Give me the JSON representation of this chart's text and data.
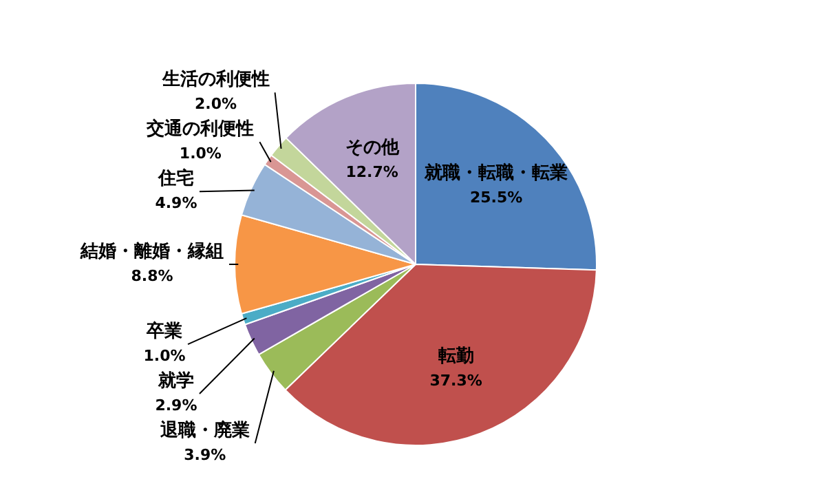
{
  "chart_data": {
    "type": "pie",
    "categories": [
      "就職・転職・転業",
      "転勤",
      "退職・廃業",
      "就学",
      "卒業",
      "結婚・離婚・縁組",
      "住宅",
      "交通の利便性",
      "生活の利便性",
      "その他"
    ],
    "values": [
      25.5,
      37.3,
      3.9,
      2.9,
      1.0,
      8.8,
      4.9,
      1.0,
      2.0,
      12.7
    ],
    "value_labels": [
      "25.5%",
      "37.3%",
      "3.9%",
      "2.9%",
      "1.0%",
      "8.8%",
      "4.9%",
      "1.0%",
      "2.0%",
      "12.7%"
    ],
    "colors": [
      "#4f81bd",
      "#c0504d",
      "#9bbb59",
      "#8064a2",
      "#4bacc6",
      "#f79646",
      "#95b3d7",
      "#d99694",
      "#c3d69b",
      "#b3a2c7"
    ],
    "legend": false
  }
}
